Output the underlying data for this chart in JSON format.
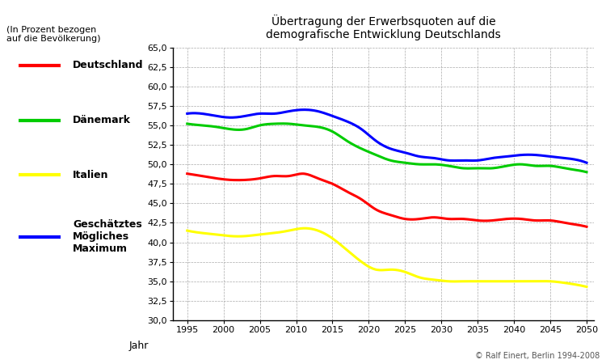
{
  "title": "Übertragung der Erwerbsquoten auf die\ndemografische Entwicklung Deutschlands",
  "ylabel_text": "(In Prozent bezogen\nauf die Bevölkerung)",
  "xlabel": "Jahr",
  "copyright": "© Ralf Einert, Berlin 1994-2008",
  "ylim": [
    30.0,
    65.0
  ],
  "yticks": [
    30.0,
    32.5,
    35.0,
    37.5,
    40.0,
    42.5,
    45.0,
    47.5,
    50.0,
    52.5,
    55.0,
    57.5,
    60.0,
    62.5,
    65.0
  ],
  "xticks": [
    1995,
    2000,
    2005,
    2010,
    2015,
    2020,
    2025,
    2030,
    2035,
    2040,
    2045,
    2050
  ],
  "years": [
    1995,
    1997,
    1999,
    2001,
    2003,
    2005,
    2007,
    2009,
    2011,
    2013,
    2015,
    2017,
    2019,
    2021,
    2023,
    2025,
    2027,
    2029,
    2031,
    2033,
    2035,
    2037,
    2039,
    2041,
    2043,
    2045,
    2047,
    2049,
    2050
  ],
  "deutschland": [
    48.8,
    48.5,
    48.2,
    48.0,
    48.0,
    48.2,
    48.5,
    48.5,
    48.8,
    48.2,
    47.5,
    46.5,
    45.5,
    44.2,
    43.5,
    43.0,
    43.0,
    43.2,
    43.0,
    43.0,
    42.8,
    42.8,
    43.0,
    43.0,
    42.8,
    42.8,
    42.5,
    42.2,
    42.0
  ],
  "daenemark": [
    55.2,
    55.0,
    54.8,
    54.5,
    54.5,
    55.0,
    55.2,
    55.2,
    55.0,
    54.8,
    54.2,
    53.0,
    52.0,
    51.2,
    50.5,
    50.2,
    50.0,
    50.0,
    49.8,
    49.5,
    49.5,
    49.5,
    49.8,
    50.0,
    49.8,
    49.8,
    49.5,
    49.2,
    49.0
  ],
  "italien": [
    41.5,
    41.2,
    41.0,
    40.8,
    40.8,
    41.0,
    41.2,
    41.5,
    41.8,
    41.5,
    40.5,
    39.0,
    37.5,
    36.5,
    36.5,
    36.2,
    35.5,
    35.2,
    35.0,
    35.0,
    35.0,
    35.0,
    35.0,
    35.0,
    35.0,
    35.0,
    34.8,
    34.5,
    34.3
  ],
  "maximum": [
    56.5,
    56.5,
    56.2,
    56.0,
    56.2,
    56.5,
    56.5,
    56.8,
    57.0,
    56.8,
    56.2,
    55.5,
    54.5,
    53.0,
    52.0,
    51.5,
    51.0,
    50.8,
    50.5,
    50.5,
    50.5,
    50.8,
    51.0,
    51.2,
    51.2,
    51.0,
    50.8,
    50.5,
    50.2
  ],
  "color_deutschland": "#ff0000",
  "color_daenemark": "#00cc00",
  "color_italien": "#ffff00",
  "color_maximum": "#0000ff",
  "background_color": "#ffffff",
  "grid_color": "#aaaaaa",
  "linewidth": 2.2
}
